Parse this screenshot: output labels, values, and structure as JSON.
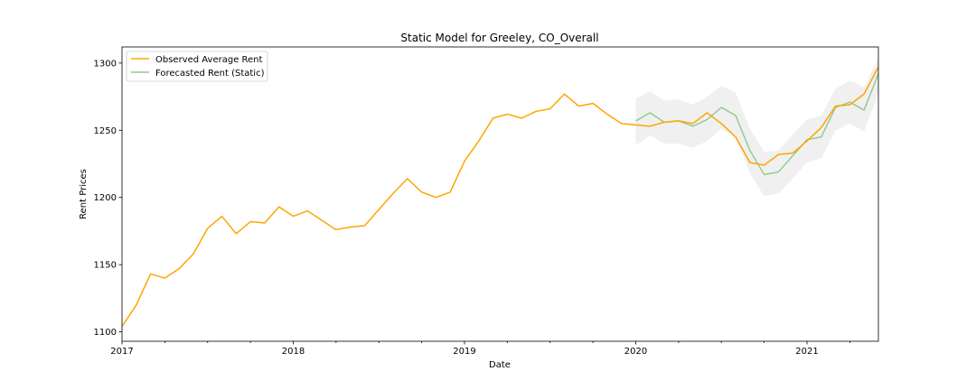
{
  "chart_data": {
    "type": "line",
    "title": "Static Model for Greeley, CO_Overall",
    "xlabel": "Date",
    "ylabel": "Rent Prices",
    "xlim": [
      2017.0,
      2021.417
    ],
    "ylim": [
      1093,
      1312
    ],
    "x_ticks": [
      {
        "value": 2017,
        "label": "2017"
      },
      {
        "value": 2018,
        "label": "2018"
      },
      {
        "value": 2019,
        "label": "2019"
      },
      {
        "value": 2020,
        "label": "2020"
      },
      {
        "value": 2021,
        "label": "2021"
      }
    ],
    "y_ticks": [
      {
        "value": 1100,
        "label": "1100"
      },
      {
        "value": 1150,
        "label": "1150"
      },
      {
        "value": 1200,
        "label": "1200"
      },
      {
        "value": 1250,
        "label": "1250"
      },
      {
        "value": 1300,
        "label": "1300"
      }
    ],
    "legend": {
      "position": "top-left"
    },
    "series": [
      {
        "name": "Observed Average Rent",
        "color": "#ffa500",
        "start": 2017.0,
        "step_months": 1,
        "values": [
          1104,
          1120,
          1143,
          1140,
          1147,
          1158,
          1177,
          1186,
          1173,
          1182,
          1181,
          1193,
          1186,
          1190,
          1183,
          1176,
          1178,
          1179,
          1191,
          1203,
          1214,
          1204,
          1200,
          1204,
          1227,
          1242,
          1259,
          1262,
          1259,
          1264,
          1266,
          1277,
          1268,
          1270,
          1262,
          1255,
          1254,
          1253,
          1256,
          1257,
          1255,
          1263,
          1255,
          1245,
          1226,
          1224,
          1232,
          1233,
          1242,
          1252,
          1268,
          1269,
          1277,
          1297
        ]
      },
      {
        "name": "Forecasted Rent (Static)",
        "color": "#8fc98a",
        "start": 2020.0,
        "step_months": 1,
        "values": [
          1257,
          1263,
          1256,
          1257,
          1253,
          1258,
          1267,
          1261,
          1235,
          1217,
          1219,
          1231,
          1243,
          1245,
          1267,
          1271,
          1265,
          1292
        ],
        "ci_lower": [
          1239,
          1246,
          1240,
          1240,
          1237,
          1242,
          1251,
          1244,
          1218,
          1201,
          1203,
          1214,
          1226,
          1229,
          1250,
          1255,
          1249,
          1277
        ],
        "ci_upper": [
          1274,
          1279,
          1272,
          1273,
          1269,
          1275,
          1283,
          1278,
          1251,
          1234,
          1235,
          1247,
          1258,
          1261,
          1281,
          1287,
          1282,
          1304
        ]
      }
    ]
  }
}
